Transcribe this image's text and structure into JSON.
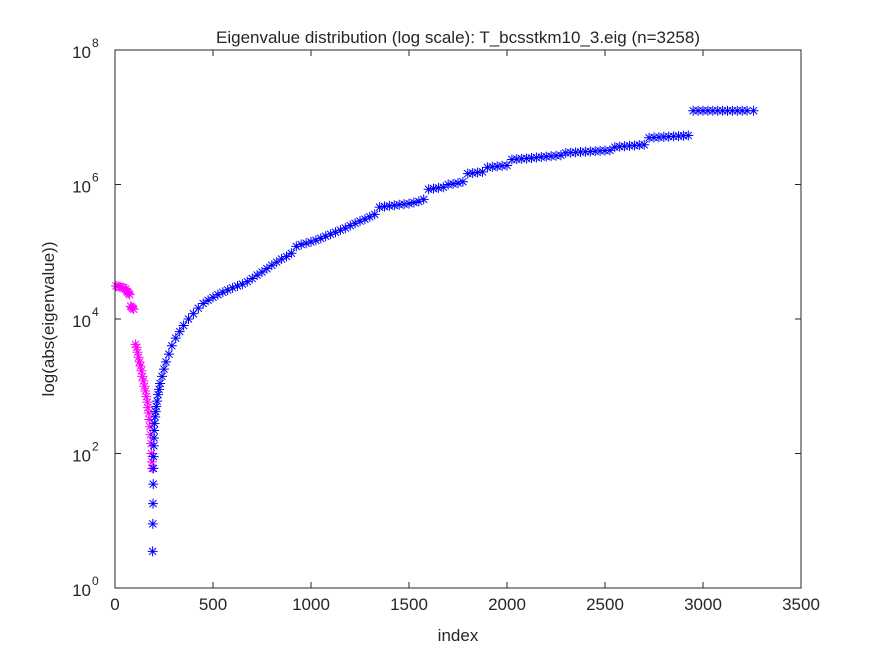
{
  "chart_data": {
    "type": "scatter",
    "title": "Eigenvalue distribution (log scale): T_bcsstkm10_3.eig (n=3258)",
    "xlabel": "index",
    "ylabel": "log(abs(eigenvalue))",
    "xlim": [
      0,
      3500
    ],
    "ylim": [
      1,
      100000000
    ],
    "yscale": "log",
    "grid": false,
    "legend": "none",
    "marker": "asterisk",
    "x_ticks": [
      {
        "value": 0,
        "label": "0"
      },
      {
        "value": 500,
        "label": "500"
      },
      {
        "value": 1000,
        "label": "1000"
      },
      {
        "value": 1500,
        "label": "1500"
      },
      {
        "value": 2000,
        "label": "2000"
      },
      {
        "value": 2500,
        "label": "2500"
      },
      {
        "value": 3000,
        "label": "3000"
      },
      {
        "value": 3500,
        "label": "3500"
      }
    ],
    "y_ticks": [
      {
        "value": 1,
        "base": "10",
        "exp": "0"
      },
      {
        "value": 100,
        "base": "10",
        "exp": "2"
      },
      {
        "value": 10000,
        "base": "10",
        "exp": "4"
      },
      {
        "value": 1000000,
        "base": "10",
        "exp": "6"
      },
      {
        "value": 100000000,
        "base": "10",
        "exp": "8"
      }
    ],
    "series": [
      {
        "color": "#ff00ff",
        "points": [
          [
            5,
            31000
          ],
          [
            15,
            30500
          ],
          [
            25,
            30000
          ],
          [
            35,
            29500
          ],
          [
            45,
            29000
          ],
          [
            55,
            28000
          ],
          [
            60,
            26000
          ],
          [
            65,
            25000
          ],
          [
            70,
            24000
          ],
          [
            75,
            23000
          ],
          [
            80,
            15500
          ],
          [
            85,
            15000
          ],
          [
            90,
            14500
          ],
          [
            95,
            14000
          ],
          [
            105,
            4200
          ],
          [
            110,
            3800
          ],
          [
            115,
            3200
          ],
          [
            120,
            2700
          ],
          [
            125,
            2300
          ],
          [
            130,
            2000
          ],
          [
            135,
            1700
          ],
          [
            140,
            1400
          ],
          [
            145,
            1200
          ],
          [
            150,
            1000
          ],
          [
            155,
            850
          ],
          [
            160,
            700
          ],
          [
            165,
            580
          ],
          [
            168,
            480
          ],
          [
            172,
            400
          ],
          [
            175,
            320
          ],
          [
            178,
            250
          ],
          [
            181,
            190
          ],
          [
            184,
            140
          ],
          [
            186,
            100
          ],
          [
            188,
            75
          ],
          [
            190,
            60
          ]
        ]
      },
      {
        "color": "#0000ff",
        "points": [
          [
            192,
            3.5
          ],
          [
            193,
            9
          ],
          [
            194,
            18
          ],
          [
            195,
            35
          ],
          [
            196,
            60
          ],
          [
            197,
            90
          ],
          [
            198,
            130
          ],
          [
            199,
            170
          ],
          [
            200,
            220
          ],
          [
            202,
            280
          ],
          [
            205,
            350
          ],
          [
            208,
            420
          ],
          [
            211,
            500
          ],
          [
            215,
            600
          ],
          [
            220,
            750
          ],
          [
            225,
            900
          ],
          [
            230,
            1100
          ],
          [
            240,
            1400
          ],
          [
            250,
            1800
          ],
          [
            260,
            2300
          ],
          [
            275,
            3000
          ],
          [
            290,
            4000
          ],
          [
            310,
            5200
          ],
          [
            330,
            6500
          ],
          [
            350,
            8000
          ],
          [
            375,
            10000
          ],
          [
            400,
            12000
          ],
          [
            425,
            14500
          ],
          [
            450,
            17000
          ],
          [
            475,
            19000
          ],
          [
            500,
            21000
          ],
          [
            525,
            23000
          ],
          [
            550,
            25000
          ],
          [
            575,
            27000
          ],
          [
            600,
            29000
          ],
          [
            625,
            31000
          ],
          [
            650,
            33000
          ],
          [
            675,
            36000
          ],
          [
            700,
            40000
          ],
          [
            725,
            45000
          ],
          [
            750,
            50000
          ],
          [
            775,
            56000
          ],
          [
            800,
            63000
          ],
          [
            825,
            70000
          ],
          [
            850,
            78000
          ],
          [
            875,
            85000
          ],
          [
            900,
            95000
          ],
          [
            925,
            120000
          ],
          [
            950,
            128000
          ],
          [
            975,
            134000
          ],
          [
            1000,
            140000
          ],
          [
            1025,
            148000
          ],
          [
            1050,
            158000
          ],
          [
            1075,
            170000
          ],
          [
            1100,
            182000
          ],
          [
            1125,
            195000
          ],
          [
            1150,
            210000
          ],
          [
            1175,
            225000
          ],
          [
            1200,
            245000
          ],
          [
            1225,
            265000
          ],
          [
            1250,
            285000
          ],
          [
            1275,
            305000
          ],
          [
            1300,
            330000
          ],
          [
            1325,
            360000
          ],
          [
            1350,
            460000
          ],
          [
            1375,
            470000
          ],
          [
            1400,
            480000
          ],
          [
            1425,
            490000
          ],
          [
            1450,
            500000
          ],
          [
            1475,
            510000
          ],
          [
            1500,
            520000
          ],
          [
            1525,
            540000
          ],
          [
            1550,
            560000
          ],
          [
            1575,
            600000
          ],
          [
            1600,
            850000
          ],
          [
            1625,
            870000
          ],
          [
            1650,
            890000
          ],
          [
            1675,
            910000
          ],
          [
            1700,
            1000000
          ],
          [
            1725,
            1020000
          ],
          [
            1750,
            1050000
          ],
          [
            1775,
            1100000
          ],
          [
            1800,
            1450000
          ],
          [
            1825,
            1480000
          ],
          [
            1850,
            1510000
          ],
          [
            1875,
            1540000
          ],
          [
            1900,
            1800000
          ],
          [
            1925,
            1830000
          ],
          [
            1950,
            1860000
          ],
          [
            1975,
            1890000
          ],
          [
            2000,
            1920000
          ],
          [
            2025,
            2350000
          ],
          [
            2050,
            2380000
          ],
          [
            2075,
            2410000
          ],
          [
            2100,
            2440000
          ],
          [
            2125,
            2480000
          ],
          [
            2150,
            2520000
          ],
          [
            2175,
            2560000
          ],
          [
            2200,
            2600000
          ],
          [
            2225,
            2640000
          ],
          [
            2250,
            2680000
          ],
          [
            2275,
            2720000
          ],
          [
            2300,
            2950000
          ],
          [
            2325,
            2980000
          ],
          [
            2350,
            3010000
          ],
          [
            2375,
            3040000
          ],
          [
            2400,
            3070000
          ],
          [
            2425,
            3100000
          ],
          [
            2450,
            3130000
          ],
          [
            2475,
            3160000
          ],
          [
            2500,
            3190000
          ],
          [
            2525,
            3220000
          ],
          [
            2550,
            3600000
          ],
          [
            2575,
            3650000
          ],
          [
            2600,
            3700000
          ],
          [
            2625,
            3750000
          ],
          [
            2650,
            3800000
          ],
          [
            2675,
            3850000
          ],
          [
            2700,
            3900000
          ],
          [
            2725,
            4950000
          ],
          [
            2750,
            5000000
          ],
          [
            2775,
            5050000
          ],
          [
            2800,
            5100000
          ],
          [
            2825,
            5150000
          ],
          [
            2850,
            5200000
          ],
          [
            2875,
            5250000
          ],
          [
            2900,
            5300000
          ],
          [
            2925,
            5350000
          ],
          [
            2950,
            12500000
          ],
          [
            2975,
            12500000
          ],
          [
            3000,
            12500000
          ],
          [
            3025,
            12500000
          ],
          [
            3050,
            12500000
          ],
          [
            3075,
            12500000
          ],
          [
            3100,
            12500000
          ],
          [
            3125,
            12500000
          ],
          [
            3150,
            12500000
          ],
          [
            3175,
            12500000
          ],
          [
            3200,
            12500000
          ],
          [
            3225,
            12500000
          ],
          [
            3258,
            12500000
          ]
        ]
      }
    ]
  }
}
